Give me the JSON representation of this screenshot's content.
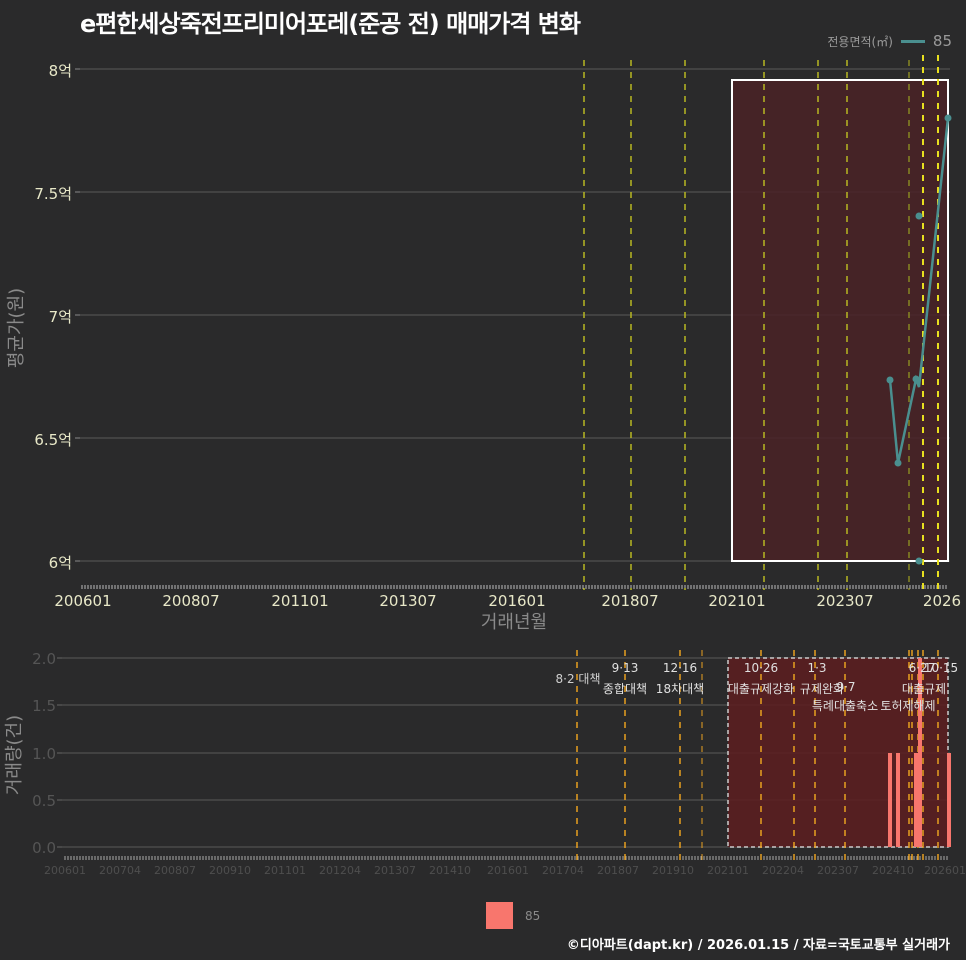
{
  "title": "e편한세상죽전프리미어포레(준공 전) 매매가격 변화",
  "legend_top": {
    "title": "전용면적(㎡)",
    "entry": "85",
    "color": "#4a8f8f"
  },
  "legend_bottom": {
    "entry": "85",
    "color": "#f8766d"
  },
  "footer": "©디아파트(dapt.kr) / 2026.01.15 / 자료=국토교통부 실거래가",
  "top_chart": {
    "ylabel": "평균가(원)",
    "xlabel": "거래년월",
    "yticks": [
      "8억",
      "7.5억",
      "7억",
      "6.5억",
      "6억"
    ],
    "xticks": [
      "200601",
      "200807",
      "201101",
      "201307",
      "201601",
      "201807",
      "202101",
      "202307",
      "2026"
    ]
  },
  "bottom_chart": {
    "ylabel": "거래량(건)",
    "yticks": [
      "2.0",
      "1.5",
      "1.0",
      "0.5",
      "0.0"
    ],
    "xticks": [
      "200601",
      "200704",
      "200807",
      "200910",
      "201101",
      "201204",
      "201307",
      "201410",
      "201601",
      "201704",
      "201807",
      "201910",
      "202101",
      "202204",
      "202307",
      "202410",
      "202601"
    ],
    "annotations": [
      {
        "date": "8·2 대책",
        "label": ""
      },
      {
        "date": "9·13",
        "label": "종합대책"
      },
      {
        "date": "12·16",
        "label": "18차대책"
      },
      {
        "date": "10·26",
        "label": "대출규제강화"
      },
      {
        "date": "1·3",
        "label": "규제완화"
      },
      {
        "date": "9·7",
        "label": "특례대출축소"
      },
      {
        "date": "6·27",
        "label": "대출규제"
      },
      {
        "date": "10·15",
        "label": "토허제해제"
      }
    ],
    "annotation_texts": {
      "a1": "8·2 대책",
      "a2_date": "9·13",
      "a2_label": "종합대책",
      "a3_date": "12·16",
      "a3_label": "18차대책",
      "a4_date": "10·26",
      "a4_label": "대출규제강화",
      "a5_date": "1·3",
      "a5_label": "규제완화",
      "a6_date": "9·7",
      "a6_label": "특례대출축소",
      "a7_label": "토허제해제",
      "a8_date": "6·27",
      "a9_date": "10·15",
      "a8_label": "대출규제"
    }
  },
  "chart_data": [
    {
      "type": "line",
      "title": "e편한세상죽전프리미어포레(준공 전) 매매가격 변화",
      "xlabel": "거래년월",
      "ylabel": "평균가(원)",
      "ylim": [
        6.0,
        8.0
      ],
      "y_unit": "억",
      "grid": true,
      "legend_position": "top-right",
      "legend_title": "전용면적(㎡)",
      "series": [
        {
          "name": "85",
          "x": [
            "202409",
            "202410",
            "202412",
            "202501",
            "202501",
            "202502",
            "202601"
          ],
          "values": [
            6.73,
            6.4,
            6.75,
            6.72,
            7.4,
            6.0,
            7.8
          ]
        }
      ],
      "highlight_region": {
        "x_start": "202104",
        "x_end": "202601",
        "y_range": [
          6.0,
          7.95
        ]
      },
      "policy_lines": [
        "201708",
        "201809",
        "201912",
        "202110",
        "202301",
        "202309",
        "202506",
        "202510"
      ]
    },
    {
      "type": "bar",
      "title": "거래량",
      "xlabel": "",
      "ylabel": "거래량(건)",
      "ylim": [
        0,
        2.0
      ],
      "grid": true,
      "legend_position": "bottom",
      "series": [
        {
          "name": "85",
          "x": [
            "202409",
            "202410",
            "202501",
            "202502",
            "202601"
          ],
          "values": [
            1,
            1,
            1,
            2,
            1
          ]
        }
      ],
      "annotations": [
        "8·2 대책",
        "9·13 종합대책",
        "12·16 18차대책",
        "10·26 대출규제강화",
        "1·3 규제완화",
        "9·7 특례대출축소",
        "6·27 대출규제",
        "10·15 토허제해제"
      ]
    }
  ]
}
